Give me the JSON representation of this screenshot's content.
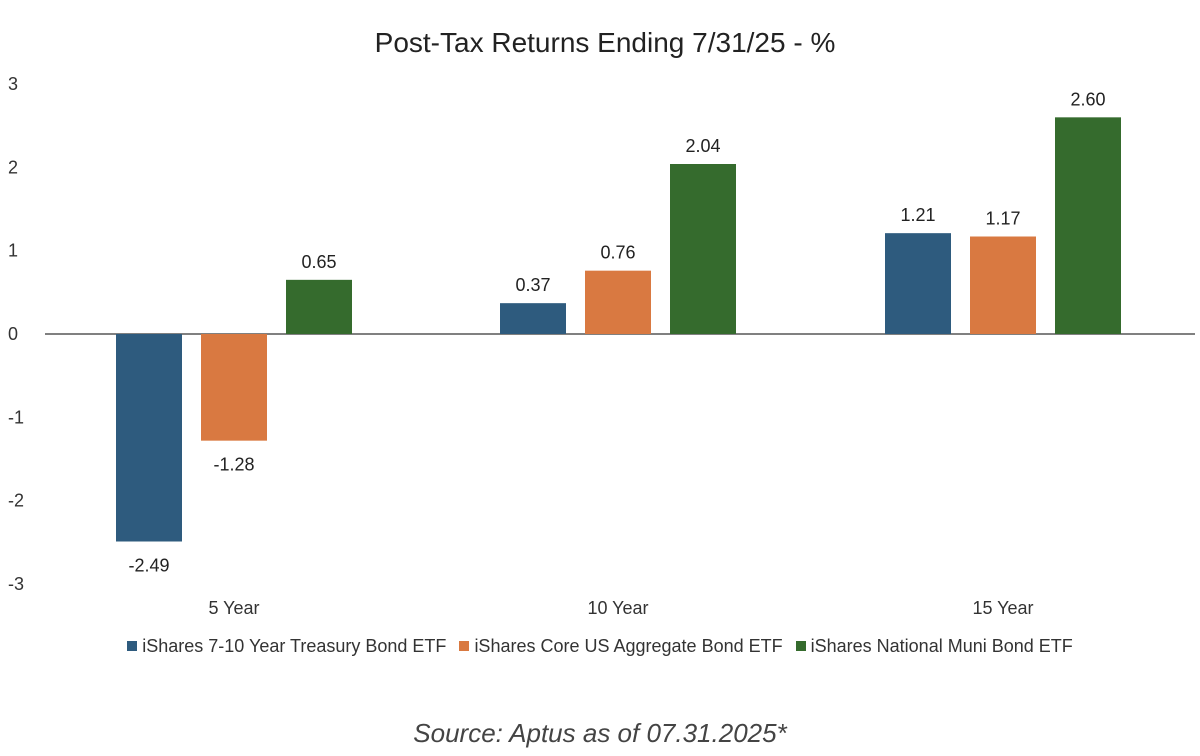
{
  "chart_data": {
    "type": "bar",
    "title": "Post-Tax Returns Ending 7/31/25 - %",
    "categories": [
      "5 Year",
      "10 Year",
      "15 Year"
    ],
    "series": [
      {
        "name": "iShares 7-10 Year Treasury Bond ETF",
        "color": "#2e5b7e",
        "values": [
          -2.49,
          0.37,
          1.21
        ]
      },
      {
        "name": "iShares Core US Aggregate Bond ETF",
        "color": "#d97941",
        "values": [
          -1.28,
          0.76,
          1.17
        ]
      },
      {
        "name": "iShares National Muni Bond ETF",
        "color": "#356b2d",
        "values": [
          0.65,
          2.04,
          2.6
        ]
      }
    ],
    "data_labels": [
      [
        "-2.49",
        "0.37",
        "1.21"
      ],
      [
        "-1.28",
        "0.76",
        "1.17"
      ],
      [
        "0.65",
        "2.04",
        "2.60"
      ]
    ],
    "y_ticks": [
      "3",
      "2",
      "1",
      "0",
      "-1",
      "-2",
      "-3"
    ],
    "ylim": [
      -3,
      3
    ],
    "grid": false,
    "legend_position": "bottom"
  },
  "source_text": "Source: Aptus as of 07.31.2025*"
}
